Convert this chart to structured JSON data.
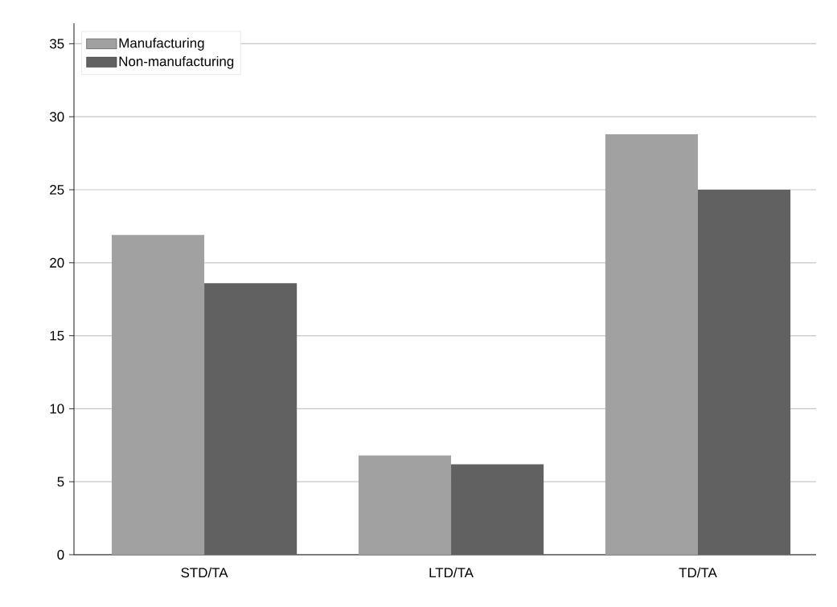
{
  "chart_data": {
    "type": "bar",
    "categories": [
      "STD/TA",
      "LTD/TA",
      "TD/TA"
    ],
    "series": [
      {
        "name": "Manufacturing",
        "color": "#a1a1a1",
        "values": [
          21.9,
          6.8,
          28.8
        ]
      },
      {
        "name": "Non-manufacturing",
        "color": "#616161",
        "values": [
          18.6,
          6.2,
          25.0
        ]
      }
    ],
    "ylim": [
      0,
      36.4
    ],
    "yticks": [
      0,
      5,
      10,
      15,
      20,
      25,
      30,
      35
    ],
    "grid": "y",
    "legend": "top left"
  }
}
